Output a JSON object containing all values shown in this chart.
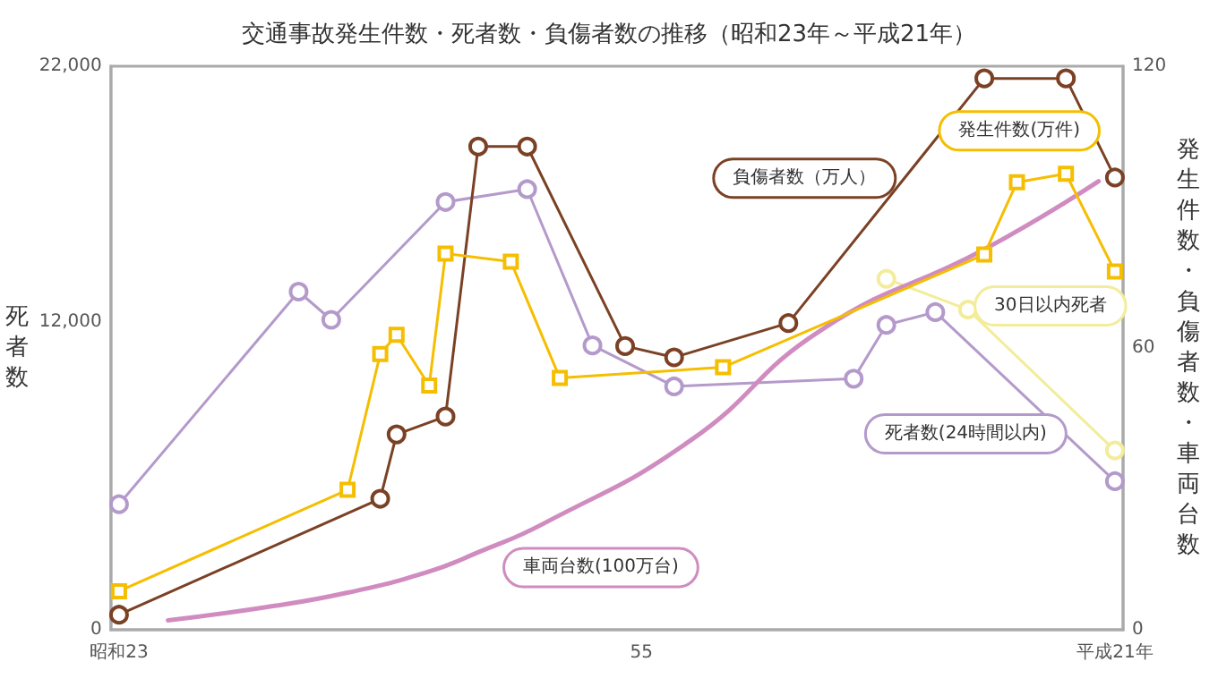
{
  "chart_data": {
    "type": "line",
    "title": "交通事故発生件数・死者数・負傷者数の推移（昭和23年～平成21年）",
    "ylabel": "死者数",
    "y2label": "発生件数・負傷者数・車両台数",
    "legend": false,
    "grid": false,
    "categories": [
      "昭和23",
      null,
      null,
      null,
      null,
      null,
      null,
      null,
      null,
      null,
      null,
      null,
      null,
      null,
      null,
      null,
      null,
      null,
      null,
      null,
      null,
      null,
      null,
      null,
      null,
      null,
      null,
      null,
      null,
      null,
      null,
      null,
      "55",
      null,
      null,
      null,
      null,
      null,
      null,
      null,
      null,
      null,
      null,
      null,
      null,
      null,
      null,
      null,
      null,
      null,
      null,
      null,
      null,
      null,
      null,
      null,
      null,
      null,
      null,
      null,
      null,
      "平成21年"
    ],
    "ylim": [
      0,
      22000
    ],
    "yticks": [
      0,
      {
        "value": 12000,
        "label": "12,000"
      },
      {
        "value": 22000,
        "label": "22,000"
      }
    ],
    "y2lim": [
      0,
      120
    ],
    "y2ticks": [
      0,
      60,
      120
    ],
    "series": [
      {
        "name": "発生件数(万件)",
        "color": "#f5be00",
        "marker": "square",
        "axis": "y2",
        "values": [
          8.2,
          null,
          null,
          null,
          null,
          null,
          null,
          null,
          null,
          null,
          null,
          null,
          null,
          null,
          29.8,
          null,
          58.7,
          62.8,
          null,
          52.0,
          80.1,
          null,
          null,
          null,
          78.4,
          null,
          null,
          53.6,
          null,
          null,
          null,
          null,
          null,
          null,
          null,
          null,
          null,
          55.9,
          null,
          null,
          null,
          null,
          null,
          null,
          null,
          null,
          null,
          null,
          null,
          null,
          null,
          null,
          null,
          79.9,
          null,
          95.3,
          null,
          null,
          97.1,
          null,
          null,
          76.3
        ]
      },
      {
        "name": "負傷者数（万人）",
        "color": "#7b4125",
        "marker": "circle",
        "axis": "y2",
        "values": [
          3.2,
          null,
          null,
          null,
          null,
          null,
          null,
          null,
          null,
          null,
          null,
          null,
          null,
          null,
          null,
          null,
          27.9,
          41.6,
          null,
          null,
          45.4,
          null,
          102.9,
          null,
          null,
          102.9,
          null,
          null,
          null,
          null,
          null,
          60.4,
          null,
          null,
          58.0,
          null,
          null,
          null,
          null,
          null,
          null,
          65.3,
          null,
          null,
          null,
          null,
          null,
          null,
          null,
          null,
          null,
          null,
          null,
          117.4,
          null,
          null,
          null,
          null,
          117.4,
          null,
          null,
          96.3
        ]
      },
      {
        "name": "車両台数(100万台)",
        "color": "#d08cc0",
        "marker": "none",
        "axis": "y2",
        "values": [
          null,
          null,
          null,
          2.0,
          null,
          null,
          null,
          null,
          null,
          4.8,
          null,
          null,
          null,
          null,
          7.9,
          null,
          null,
          null,
          null,
          12.4,
          null,
          null,
          16.5,
          null,
          null,
          null,
          22.6,
          null,
          null,
          null,
          null,
          null,
          null,
          null,
          null,
          40.3,
          null,
          null,
          null,
          null,
          null,
          null,
          null,
          63.8,
          null,
          null,
          null,
          null,
          null,
          null,
          null,
          null,
          null,
          81,
          null,
          null,
          null,
          null,
          null,
          null,
          95.5,
          null
        ]
      },
      {
        "name": "死者数(24時間以内)",
        "color": "#b49acb",
        "marker": "circle",
        "values": [
          4900,
          null,
          null,
          null,
          null,
          null,
          null,
          null,
          null,
          null,
          null,
          13200,
          null,
          12100,
          null,
          null,
          null,
          null,
          null,
          null,
          16700,
          null,
          null,
          null,
          null,
          17200,
          null,
          null,
          null,
          11100,
          null,
          null,
          null,
          null,
          9500,
          null,
          null,
          null,
          null,
          null,
          null,
          null,
          null,
          null,
          null,
          9800,
          null,
          11900,
          null,
          null,
          12400,
          null,
          null,
          null,
          null,
          null,
          null,
          null,
          null,
          null,
          null,
          5800
        ]
      },
      {
        "name": "30日以内死者",
        "color": "#f3ec9a",
        "marker": "circle",
        "values": [
          null,
          null,
          null,
          null,
          null,
          null,
          null,
          null,
          null,
          null,
          null,
          null,
          null,
          null,
          null,
          null,
          null,
          null,
          null,
          null,
          null,
          null,
          null,
          null,
          null,
          null,
          null,
          null,
          null,
          null,
          null,
          null,
          null,
          null,
          null,
          null,
          null,
          null,
          null,
          null,
          null,
          null,
          null,
          null,
          null,
          null,
          null,
          13700,
          null,
          null,
          null,
          null,
          12500,
          null,
          null,
          null,
          null,
          null,
          null,
          null,
          null,
          7000
        ]
      }
    ]
  }
}
